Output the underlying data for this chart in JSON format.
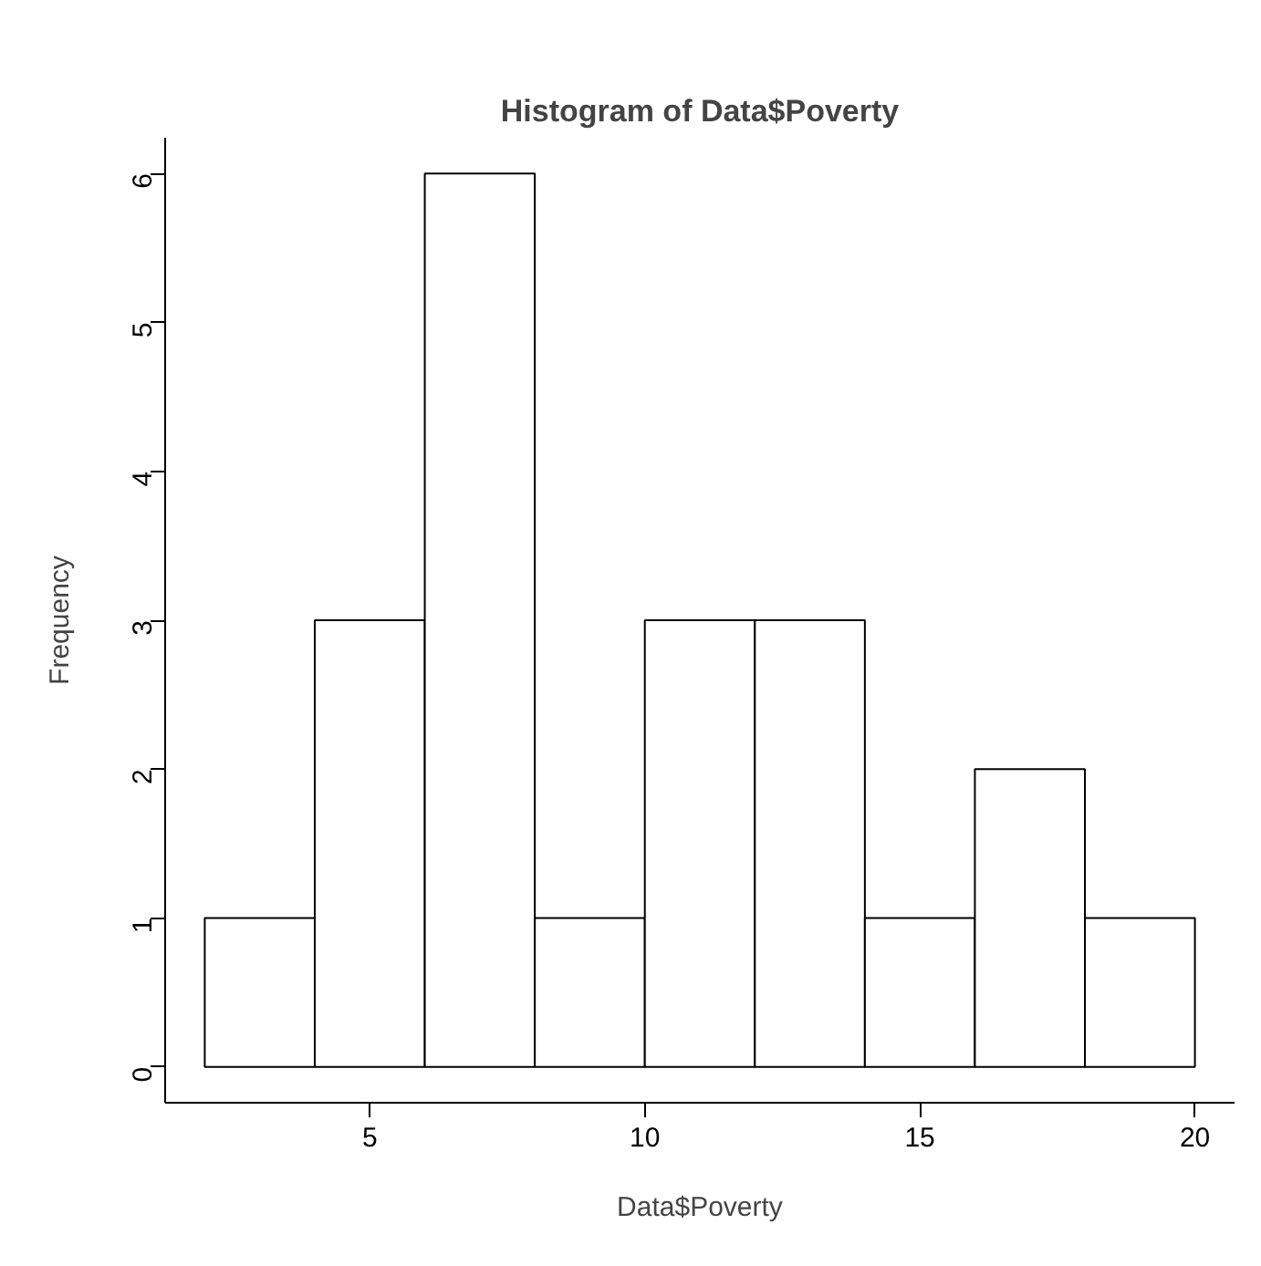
{
  "chart_data": {
    "type": "histogram",
    "title": "Histogram of Data$Poverty",
    "xlabel": "Data$Poverty",
    "ylabel": "Frequency",
    "bins": [
      2,
      4,
      6,
      8,
      10,
      12,
      14,
      16,
      18,
      20
    ],
    "values": [
      1,
      3,
      6,
      1,
      3,
      3,
      1,
      2,
      1
    ],
    "color": "#ffffff",
    "xlim": [
      1.28,
      20.72
    ],
    "ylim": [
      -0.24,
      6.24
    ],
    "xticks": [
      5,
      10,
      15,
      20
    ],
    "yticks": [
      0,
      1,
      2,
      3,
      4,
      5,
      6
    ],
    "grid": false
  }
}
